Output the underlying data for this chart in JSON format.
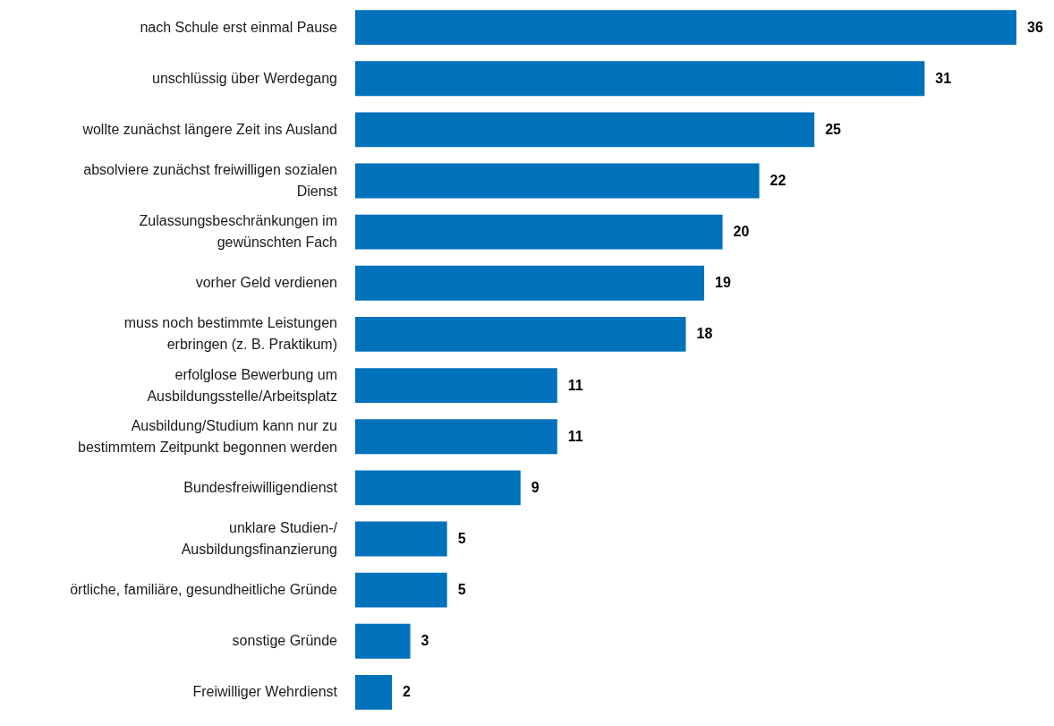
{
  "chart_data": {
    "type": "bar",
    "orientation": "horizontal",
    "data_labels": true,
    "color": "#0071bb",
    "categories": [
      "nach Schule erst einmal Pause",
      "unschlüssig über Werdegang",
      "wollte zunächst längere Zeit ins Ausland",
      "absolviere zunächst freiwilligen sozialen\nDienst",
      "Zulassungsbeschränkungen im\ngewünschten Fach",
      "vorher Geld verdienen",
      "muss noch bestimmte Leistungen\nerbringen (z. B. Praktikum)",
      "erfolglose Bewerbung um\nAusbildungsstelle/Arbeitsplatz",
      "Ausbildung/Studium kann nur zu\nbestimmtem Zeitpunkt begonnen werden",
      "Bundesfreiwilligendienst",
      "unklare Studien-/\nAusbildungsfinanzierung",
      "örtliche, familiäre, gesundheitliche Gründe",
      "sonstige Gründe",
      "Freiwilliger Wehrdienst"
    ],
    "values": [
      36,
      31,
      25,
      22,
      20,
      19,
      18,
      11,
      11,
      9,
      5,
      5,
      3,
      2
    ]
  }
}
